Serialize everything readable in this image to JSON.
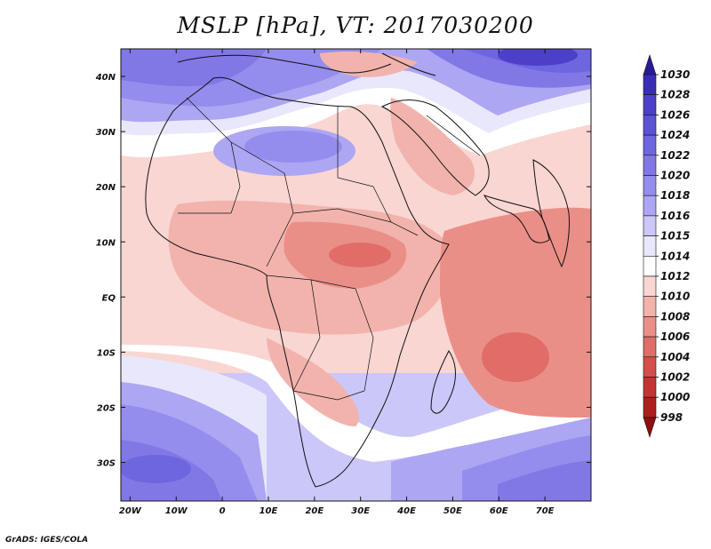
{
  "title": "MSLP [hPa], VT: 2017030200",
  "credit": "GrADS: IGES/COLA",
  "map": {
    "variable": "Mean sea level pressure",
    "units": "hPa",
    "valid_time": "2017030200",
    "lon_range": [
      -22,
      80
    ],
    "lat_range": [
      -37,
      45
    ],
    "lon_ticks": [
      "20W",
      "10W",
      "0",
      "10E",
      "20E",
      "30E",
      "40E",
      "50E",
      "60E",
      "70E"
    ],
    "lon_tick_values": [
      -20,
      -10,
      0,
      10,
      20,
      30,
      40,
      50,
      60,
      70
    ],
    "lat_ticks": [
      "40N",
      "30N",
      "20N",
      "10N",
      "EQ",
      "10S",
      "20S",
      "30S"
    ],
    "lat_tick_values": [
      40,
      30,
      20,
      10,
      0,
      -10,
      -20,
      -30
    ]
  },
  "colorbar": {
    "levels": [
      "1030",
      "1028",
      "1026",
      "1024",
      "1022",
      "1020",
      "1018",
      "1016",
      "1015",
      "1014",
      "1012",
      "1010",
      "1008",
      "1006",
      "1004",
      "1002",
      "1000",
      "998"
    ],
    "colors": [
      "#2a1a9a",
      "#3a2db5",
      "#4c40c8",
      "#5b52d6",
      "#6e66df",
      "#8178e6",
      "#958ded",
      "#aca6f3",
      "#cbc7f8",
      "#e9e7fc",
      "#ffffff",
      "#f9d6d2",
      "#f2b3ad",
      "#ea8f88",
      "#e06d67",
      "#d44e4a",
      "#c63232",
      "#b01d1d",
      "#8e0f0f"
    ]
  },
  "regions": {
    "high_pressure": [
      "North Atlantic",
      "Sahara",
      "Central Asia",
      "South Atlantic",
      "Southern Indian Ocean"
    ],
    "low_pressure": [
      "Central Africa",
      "Arabian Sea",
      "Indian Ocean"
    ]
  }
}
